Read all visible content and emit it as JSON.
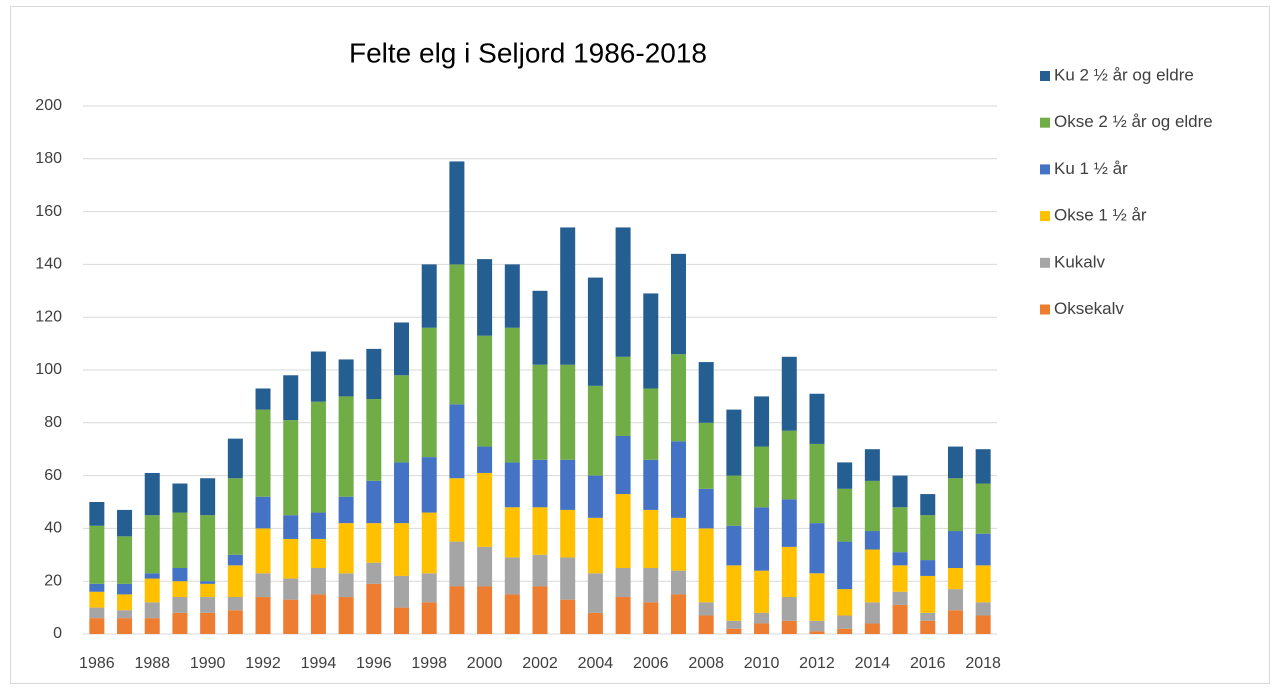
{
  "chart_data": {
    "type": "stacked_bar",
    "title": "Felte elg i Seljord 1986-2018",
    "categories": [
      "1986",
      null,
      "1988",
      null,
      "1990",
      null,
      "1992",
      null,
      "1994",
      null,
      "1996",
      null,
      "1998",
      null,
      "2000",
      null,
      "2002",
      null,
      "2004",
      null,
      "2006",
      null,
      "2008",
      null,
      "2010",
      null,
      "2012",
      null,
      "2014",
      null,
      "2016",
      null,
      "2018"
    ],
    "series": [
      {
        "name": "Oksekalv",
        "color": "#ed7d31",
        "values": [
          6,
          6,
          6,
          8,
          8,
          9,
          14,
          13,
          15,
          14,
          19,
          10,
          12,
          18,
          18,
          15,
          18,
          13,
          8,
          14,
          12,
          15,
          7,
          2,
          4,
          5,
          1,
          2,
          4,
          11,
          5,
          9,
          7
        ]
      },
      {
        "name": "Kukalv",
        "color": "#a5a5a5",
        "values": [
          4,
          3,
          6,
          6,
          6,
          5,
          9,
          8,
          10,
          9,
          8,
          12,
          11,
          17,
          15,
          14,
          12,
          16,
          15,
          11,
          13,
          9,
          5,
          3,
          4,
          9,
          4,
          5,
          8,
          5,
          3,
          8,
          5
        ]
      },
      {
        "name": "Okse 1 ½ år",
        "color": "#ffc000",
        "values": [
          6,
          6,
          9,
          6,
          5,
          12,
          17,
          15,
          11,
          19,
          15,
          20,
          23,
          24,
          28,
          19,
          18,
          18,
          21,
          28,
          22,
          20,
          28,
          21,
          16,
          19,
          18,
          10,
          20,
          10,
          14,
          8,
          14
        ]
      },
      {
        "name": "Ku 1 ½ år",
        "color": "#4472c4",
        "values": [
          3,
          4,
          2,
          5,
          1,
          4,
          12,
          9,
          10,
          10,
          16,
          23,
          21,
          28,
          10,
          17,
          18,
          19,
          16,
          22,
          19,
          29,
          15,
          15,
          24,
          18,
          19,
          18,
          7,
          5,
          6,
          14,
          12
        ]
      },
      {
        "name": "Okse 2 ½ år og eldre",
        "color": "#70ad47",
        "values": [
          22,
          18,
          22,
          21,
          25,
          29,
          33,
          36,
          42,
          38,
          31,
          33,
          49,
          53,
          42,
          51,
          36,
          36,
          34,
          30,
          27,
          33,
          25,
          19,
          23,
          26,
          30,
          20,
          19,
          17,
          17,
          20,
          19
        ]
      },
      {
        "name": "Ku 2 ½ år og eldre",
        "color": "#255e91",
        "values": [
          9,
          10,
          16,
          11,
          14,
          15,
          8,
          17,
          19,
          14,
          19,
          20,
          24,
          39,
          29,
          24,
          28,
          52,
          41,
          49,
          36,
          38,
          23,
          25,
          19,
          28,
          19,
          10,
          12,
          12,
          8,
          12,
          13
        ]
      }
    ],
    "ylim": [
      0,
      200
    ],
    "yticks": [
      0,
      20,
      40,
      60,
      80,
      100,
      120,
      140,
      160,
      180,
      200
    ],
    "grid": true,
    "legend": "right"
  }
}
